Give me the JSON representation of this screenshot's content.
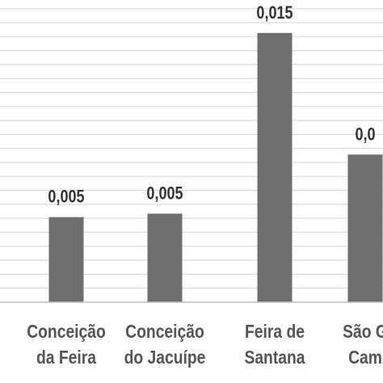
{
  "chart_data": {
    "type": "bar",
    "title": "",
    "xlabel": "",
    "ylabel": "",
    "categories": [
      [
        "Conceição",
        "da Feira"
      ],
      [
        "Conceição",
        "do Jacuípe"
      ],
      [
        "Feira de",
        "Santana"
      ],
      [
        "São G",
        "Cam"
      ]
    ],
    "values": [
      0.0049,
      0.0051,
      0.0155,
      0.0085
    ],
    "data_labels": [
      "0,005",
      "0,005",
      "0,015",
      "0,0"
    ],
    "ylim": [
      0,
      0.0174
    ],
    "grid": true,
    "colors": {
      "bar": "#6e6e6e",
      "grid": "#d9d9d9",
      "axis": "#bfbfbf",
      "text": "#555555",
      "label": "#333333"
    }
  }
}
